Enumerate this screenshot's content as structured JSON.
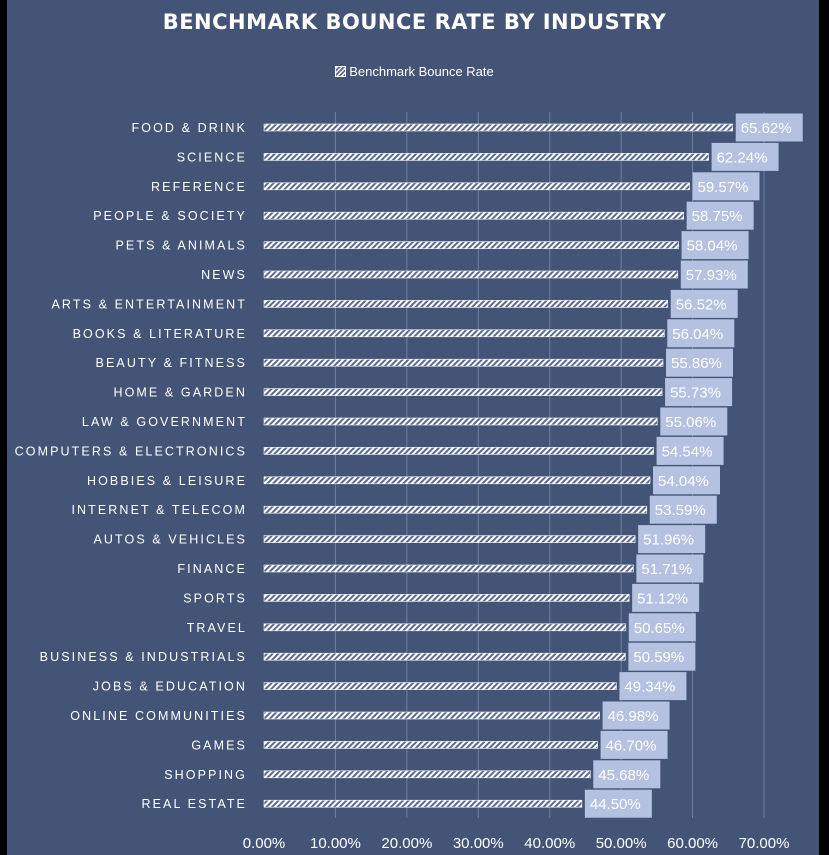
{
  "chart_data": {
    "type": "bar",
    "orientation": "horizontal",
    "title": "BENCHMARK BOUNCE RATE BY INDUSTRY",
    "legend": {
      "position": "top",
      "entries": [
        "Benchmark Bounce Rate"
      ]
    },
    "categories": [
      "FOOD & DRINK",
      "SCIENCE",
      "REFERENCE",
      "PEOPLE & SOCIETY",
      "PETS & ANIMALS",
      "NEWS",
      "ARTS & ENTERTAINMENT",
      "BOOKS & LITERATURE",
      "BEAUTY & FITNESS",
      "HOME & GARDEN",
      "LAW & GOVERNMENT",
      "COMPUTERS & ELECTRONICS",
      "HOBBIES & LEISURE",
      "INTERNET & TELECOM",
      "AUTOS & VEHICLES",
      "FINANCE",
      "SPORTS",
      "TRAVEL",
      "BUSINESS & INDUSTRIALS",
      "JOBS & EDUCATION",
      "ONLINE COMMUNITIES",
      "GAMES",
      "SHOPPING",
      "REAL ESTATE"
    ],
    "series": [
      {
        "name": "Benchmark Bounce Rate",
        "values": [
          65.62,
          62.24,
          59.57,
          58.75,
          58.04,
          57.93,
          56.52,
          56.04,
          55.86,
          55.73,
          55.06,
          54.54,
          54.04,
          53.59,
          51.96,
          51.71,
          51.12,
          50.65,
          50.59,
          49.34,
          46.98,
          46.7,
          45.68,
          44.5
        ],
        "data_labels": [
          "65.62%",
          "62.24%",
          "59.57%",
          "58.75%",
          "58.04%",
          "57.93%",
          "56.52%",
          "56.04%",
          "55.86%",
          "55.73%",
          "55.06%",
          "54.54%",
          "54.04%",
          "53.59%",
          "51.96%",
          "51.71%",
          "51.12%",
          "50.65%",
          "50.59%",
          "49.34%",
          "46.98%",
          "46.70%",
          "45.68%",
          "44.50%"
        ]
      }
    ],
    "xlim": [
      0,
      70
    ],
    "xticks": [
      0,
      10,
      20,
      30,
      40,
      50,
      60,
      70
    ],
    "xtick_labels": [
      "0.00%",
      "10.00%",
      "20.00%",
      "30.00%",
      "40.00%",
      "50.00%",
      "60.00%",
      "70.00%"
    ],
    "grid": true,
    "xlabel": "",
    "ylabel": ""
  },
  "colors": {
    "background": "#445477",
    "frame": "#000000",
    "bar_stripe": "#ffffff",
    "bar_base": "#5a6990",
    "label_box": "#b4c1e1",
    "gridline": "#6e7fa3",
    "text": "#ffffff"
  }
}
